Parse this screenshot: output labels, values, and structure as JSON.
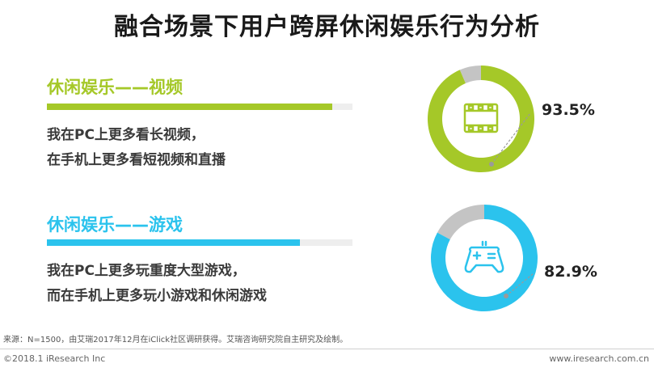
{
  "title": "融合场景下用户跨屏休闲娱乐行为分析",
  "sections": [
    {
      "heading": "休闲娱乐——视频",
      "desc_line1": "我在PC上更多看长视频，",
      "desc_line2": "在手机上更多看短视频和直播",
      "percent_label": "93.5%",
      "color": "#a5c828",
      "icon": "film-icon"
    },
    {
      "heading": "休闲娱乐——游戏",
      "desc_line1": "我在PC上更多玩重度大型游戏，",
      "desc_line2": "而在手机上更多玩小游戏和休闲游戏",
      "percent_label": "82.9%",
      "color": "#2bc3ed",
      "icon": "gamepad-icon"
    }
  ],
  "chart_data": [
    {
      "type": "pie",
      "title": "休闲娱乐——视频",
      "values": [
        93.5,
        6.5
      ],
      "colors": [
        "#a5c828",
        "#c4c4c4"
      ]
    },
    {
      "type": "pie",
      "title": "休闲娱乐——游戏",
      "values": [
        82.9,
        17.1
      ],
      "colors": [
        "#2bc3ed",
        "#c4c4c4"
      ]
    }
  ],
  "footer": {
    "source": "来源：N=1500，由艾瑞2017年12月在iClick社区调研获得。艾瑞咨询研究院自主研究及绘制。",
    "copyright": "©2018.1 iResearch Inc",
    "website": "www.iresearch.com.cn"
  }
}
